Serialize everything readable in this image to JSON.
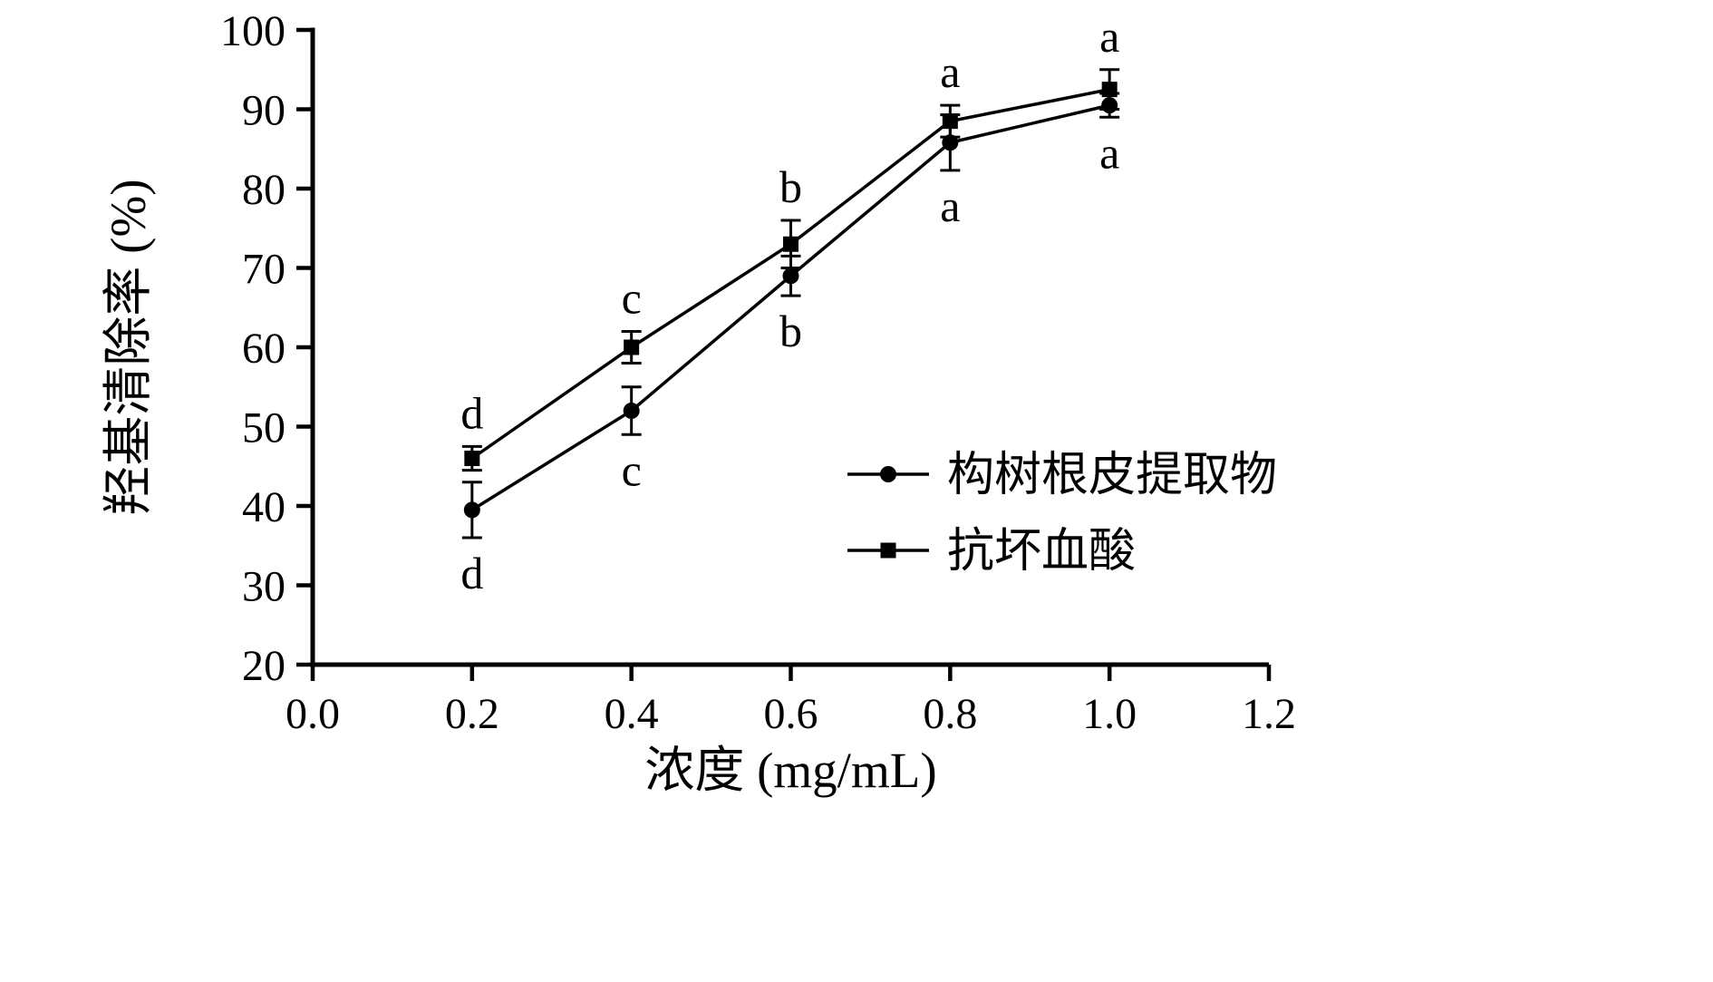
{
  "chart_data": {
    "type": "line",
    "title": "",
    "xlabel": "浓度 (mg/mL)",
    "ylabel": "羟基清除率 (%)",
    "xlim": [
      0.0,
      1.2
    ],
    "ylim": [
      20,
      100
    ],
    "x_ticks": [
      0.0,
      0.2,
      0.4,
      0.6,
      0.8,
      1.0,
      1.2
    ],
    "x_tick_labels": [
      "0.0",
      "0.2",
      "0.4",
      "0.6",
      "0.8",
      "1.0",
      "1.2"
    ],
    "y_ticks": [
      20,
      30,
      40,
      50,
      60,
      70,
      80,
      90,
      100
    ],
    "y_tick_labels": [
      "20",
      "30",
      "40",
      "50",
      "60",
      "70",
      "80",
      "90",
      "100"
    ],
    "grid": false,
    "legend_position": "inside-lower-right",
    "x": [
      0.2,
      0.4,
      0.6,
      0.8,
      1.0
    ],
    "series": [
      {
        "name": "构树根皮提取物",
        "marker": "circle",
        "values": [
          39.5,
          52.0,
          69.0,
          85.8,
          90.5
        ],
        "errors": [
          3.5,
          3.0,
          2.5,
          3.5,
          1.5
        ],
        "sig_letters": [
          "d",
          "c",
          "b",
          "a",
          "a"
        ],
        "letter_position": "below"
      },
      {
        "name": "抗坏血酸",
        "marker": "square",
        "values": [
          46.0,
          60.0,
          73.0,
          88.5,
          92.5
        ],
        "errors": [
          1.5,
          2.0,
          3.0,
          2.0,
          2.5
        ],
        "sig_letters": [
          "d",
          "c",
          "b",
          "a",
          "a"
        ],
        "letter_position": "above"
      }
    ],
    "colors": {
      "line": "#000000",
      "marker": "#000000",
      "axis": "#000000",
      "background": "#ffffff"
    }
  }
}
